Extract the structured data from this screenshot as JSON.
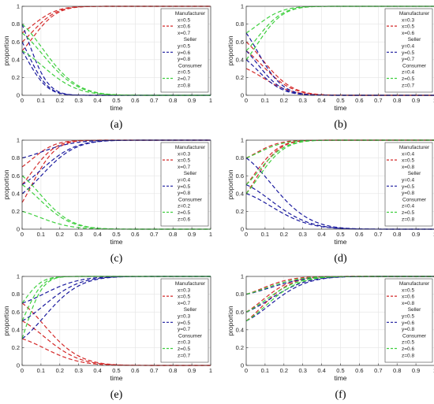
{
  "figure": {
    "colors": {
      "manufacturer": "#d42a2a",
      "seller": "#1a1a9e",
      "consumer": "#3ecf3e"
    }
  },
  "chart_data": [
    {
      "panel": "(a)",
      "type": "line",
      "xlabel": "time",
      "ylabel": "proportion",
      "xlim": [
        0,
        1
      ],
      "ylim": [
        0,
        1
      ],
      "xticks": [
        "0",
        "0.1",
        "0.2",
        "0.3",
        "0.4",
        "0.5",
        "0.6",
        "0.7",
        "0.8",
        "0.9",
        "1"
      ],
      "yticks": [
        "0",
        "0.2",
        "0.4",
        "0.6",
        "0.8",
        "1"
      ],
      "grid": true,
      "legend_position": "top-right",
      "legend": [
        {
          "group": "Manufacturer",
          "role": "manufacturer",
          "entries": [
            "x=0.5",
            "x=0.6",
            "x=0.7"
          ]
        },
        {
          "group": "Seller",
          "role": "seller",
          "entries": [
            "y=0.5",
            "y=0.6",
            "y=0.8"
          ]
        },
        {
          "group": "Consumer",
          "role": "consumer",
          "entries": [
            "z=0.5",
            "z=0.7",
            "z=0.8"
          ]
        }
      ],
      "series": [
        {
          "role": "manufacturer",
          "start": 0.5,
          "end": 1,
          "rate": 30
        },
        {
          "role": "manufacturer",
          "start": 0.6,
          "end": 1,
          "rate": 30
        },
        {
          "role": "manufacturer",
          "start": 0.7,
          "end": 1,
          "rate": 30
        },
        {
          "role": "seller",
          "start": 0.5,
          "end": 0,
          "rate": 45
        },
        {
          "role": "seller",
          "start": 0.6,
          "end": 0,
          "rate": 45
        },
        {
          "role": "seller",
          "start": 0.8,
          "end": 0,
          "rate": 45
        },
        {
          "role": "consumer",
          "start": 0.5,
          "end": 0,
          "rate": 15
        },
        {
          "role": "consumer",
          "start": 0.7,
          "end": 0,
          "rate": 15
        },
        {
          "role": "consumer",
          "start": 0.8,
          "end": 0,
          "rate": 15
        }
      ]
    },
    {
      "panel": "(b)",
      "type": "line",
      "xlabel": "time",
      "ylabel": "proportion",
      "xlim": [
        0,
        1
      ],
      "ylim": [
        0,
        1
      ],
      "xticks": [
        "0",
        "0.1",
        "0.2",
        "0.3",
        "0.4",
        "0.5",
        "0.6",
        "0.7",
        "0.8",
        "0.9",
        "1"
      ],
      "yticks": [
        "0",
        "0.2",
        "0.4",
        "0.6",
        "0.8",
        "1"
      ],
      "grid": true,
      "legend_position": "top-right",
      "legend": [
        {
          "group": "Manufacturer",
          "role": "manufacturer",
          "entries": [
            "x=0.3",
            "x=0.5",
            "x=0.6"
          ]
        },
        {
          "group": "Seller",
          "role": "seller",
          "entries": [
            "y=0.4",
            "y=0.5",
            "y=0.7"
          ]
        },
        {
          "group": "Consumer",
          "role": "consumer",
          "entries": [
            "z=0.4",
            "z=0.5",
            "z=0.7"
          ]
        }
      ],
      "series": [
        {
          "role": "manufacturer",
          "start": 0.3,
          "end": 0,
          "rate": 20
        },
        {
          "role": "manufacturer",
          "start": 0.5,
          "end": 0,
          "rate": 20
        },
        {
          "role": "manufacturer",
          "start": 0.6,
          "end": 0,
          "rate": 20
        },
        {
          "role": "seller",
          "start": 0.4,
          "end": 0,
          "rate": 28
        },
        {
          "role": "seller",
          "start": 0.5,
          "end": 0,
          "rate": 28
        },
        {
          "role": "seller",
          "start": 0.7,
          "end": 0,
          "rate": 28
        },
        {
          "role": "consumer",
          "start": 0.4,
          "end": 1,
          "rate": 28
        },
        {
          "role": "consumer",
          "start": 0.5,
          "end": 1,
          "rate": 28
        },
        {
          "role": "consumer",
          "start": 0.7,
          "end": 1,
          "rate": 28
        }
      ]
    },
    {
      "panel": "(c)",
      "type": "line",
      "xlabel": "time",
      "ylabel": "proportion",
      "xlim": [
        0,
        1
      ],
      "ylim": [
        0,
        1
      ],
      "xticks": [
        "0",
        "0.1",
        "0.2",
        "0.3",
        "0.4",
        "0.5",
        "0.6",
        "0.7",
        "0.8",
        "0.9",
        "1"
      ],
      "yticks": [
        "0",
        "0.2",
        "0.4",
        "0.6",
        "0.8",
        "1"
      ],
      "grid": true,
      "legend_position": "top-right",
      "legend": [
        {
          "group": "Manufacturer",
          "role": "manufacturer",
          "entries": [
            "x=0.3",
            "x=0.5",
            "x=0.7"
          ]
        },
        {
          "group": "Seller",
          "role": "seller",
          "entries": [
            "y=0.4",
            "y=0.5",
            "y=0.8"
          ]
        },
        {
          "group": "Consumer",
          "role": "consumer",
          "entries": [
            "z=0.2",
            "z=0.5",
            "z=0.6"
          ]
        }
      ],
      "series": [
        {
          "role": "manufacturer",
          "start": 0.3,
          "end": 1,
          "rate": 32
        },
        {
          "role": "manufacturer",
          "start": 0.5,
          "end": 1,
          "rate": 32
        },
        {
          "role": "manufacturer",
          "start": 0.7,
          "end": 1,
          "rate": 32
        },
        {
          "role": "seller",
          "start": 0.4,
          "end": 1,
          "rate": 16
        },
        {
          "role": "seller",
          "start": 0.5,
          "end": 1,
          "rate": 16
        },
        {
          "role": "seller",
          "start": 0.8,
          "end": 1,
          "rate": 16
        },
        {
          "role": "consumer",
          "start": 0.2,
          "end": 0,
          "rate": 18
        },
        {
          "role": "consumer",
          "start": 0.5,
          "end": 0,
          "rate": 18
        },
        {
          "role": "consumer",
          "start": 0.6,
          "end": 0,
          "rate": 18
        }
      ]
    },
    {
      "panel": "(d)",
      "type": "line",
      "xlabel": "time",
      "ylabel": "proportion",
      "xlim": [
        0,
        1
      ],
      "ylim": [
        0,
        1
      ],
      "xticks": [
        "0",
        "0.1",
        "0.2",
        "0.3",
        "0.4",
        "0.5",
        "0.6",
        "0.7",
        "0.8",
        "0.9",
        "1"
      ],
      "yticks": [
        "0",
        "0.2",
        "0.4",
        "0.6",
        "0.8",
        "1"
      ],
      "grid": true,
      "legend_position": "top-right",
      "legend": [
        {
          "group": "Manufacturer",
          "role": "manufacturer",
          "entries": [
            "x=0.4",
            "x=0.5",
            "x=0.8"
          ]
        },
        {
          "group": "Seller",
          "role": "seller",
          "entries": [
            "y=0.4",
            "y=0.5",
            "y=0.8"
          ]
        },
        {
          "group": "Consumer",
          "role": "consumer",
          "entries": [
            "z=0.4",
            "z=0.5",
            "z=0.8"
          ]
        }
      ],
      "series": [
        {
          "role": "manufacturer",
          "start": 0.4,
          "end": 1,
          "rate": 32
        },
        {
          "role": "manufacturer",
          "start": 0.5,
          "end": 1,
          "rate": 32
        },
        {
          "role": "manufacturer",
          "start": 0.8,
          "end": 1,
          "rate": 32
        },
        {
          "role": "seller",
          "start": 0.4,
          "end": 0,
          "rate": 12
        },
        {
          "role": "seller",
          "start": 0.5,
          "end": 0,
          "rate": 12
        },
        {
          "role": "seller",
          "start": 0.8,
          "end": 0,
          "rate": 12
        },
        {
          "role": "consumer",
          "start": 0.4,
          "end": 1,
          "rate": 26
        },
        {
          "role": "consumer",
          "start": 0.5,
          "end": 1,
          "rate": 26
        },
        {
          "role": "consumer",
          "start": 0.8,
          "end": 1,
          "rate": 26
        }
      ]
    },
    {
      "panel": "(e)",
      "type": "line",
      "xlabel": "time",
      "ylabel": "proportion",
      "xlim": [
        0,
        1
      ],
      "ylim": [
        0,
        1
      ],
      "xticks": [
        "0",
        "0.1",
        "0.2",
        "0.3",
        "0.4",
        "0.5",
        "0.6",
        "0.7",
        "0.8",
        "0.9",
        "1"
      ],
      "yticks": [
        "0",
        "0.2",
        "0.4",
        "0.6",
        "0.8",
        "1"
      ],
      "grid": true,
      "legend_position": "top-right",
      "legend": [
        {
          "group": "Manufacturer",
          "role": "manufacturer",
          "entries": [
            "x=0.3",
            "x=0.5",
            "x=0.7"
          ]
        },
        {
          "group": "Seller",
          "role": "seller",
          "entries": [
            "y=0.3",
            "y=0.5",
            "y=0.7"
          ]
        },
        {
          "group": "Consumer",
          "role": "consumer",
          "entries": [
            "z=0.3",
            "z=0.5",
            "z=0.7"
          ]
        }
      ],
      "series": [
        {
          "role": "manufacturer",
          "start": 0.3,
          "end": 0,
          "rate": 14
        },
        {
          "role": "manufacturer",
          "start": 0.5,
          "end": 0,
          "rate": 14
        },
        {
          "role": "manufacturer",
          "start": 0.7,
          "end": 0,
          "rate": 14
        },
        {
          "role": "seller",
          "start": 0.3,
          "end": 1,
          "rate": 14
        },
        {
          "role": "seller",
          "start": 0.5,
          "end": 1,
          "rate": 14
        },
        {
          "role": "seller",
          "start": 0.7,
          "end": 1,
          "rate": 14
        },
        {
          "role": "consumer",
          "start": 0.3,
          "end": 1,
          "rate": 60
        },
        {
          "role": "consumer",
          "start": 0.5,
          "end": 1,
          "rate": 60
        },
        {
          "role": "consumer",
          "start": 0.7,
          "end": 1,
          "rate": 60
        }
      ]
    },
    {
      "panel": "(f)",
      "type": "line",
      "xlabel": "time",
      "ylabel": "proportion",
      "xlim": [
        0,
        1
      ],
      "ylim": [
        0,
        1
      ],
      "xticks": [
        "0",
        "0.1",
        "0.2",
        "0.3",
        "0.4",
        "0.5",
        "0.6",
        "0.7",
        "0.8",
        "0.9",
        "1"
      ],
      "yticks": [
        "0",
        "0.2",
        "0.4",
        "0.6",
        "0.8",
        "1"
      ],
      "grid": true,
      "legend_position": "top-right",
      "legend": [
        {
          "group": "Manufacturer",
          "role": "manufacturer",
          "entries": [
            "x=0.5",
            "x=0.6",
            "x=0.8"
          ]
        },
        {
          "group": "Seller",
          "role": "seller",
          "entries": [
            "y=0.5",
            "y=0.6",
            "y=0.8"
          ]
        },
        {
          "group": "Consumer",
          "role": "consumer",
          "entries": [
            "z=0.5",
            "z=0.6",
            "z=0.8"
          ]
        }
      ],
      "series": [
        {
          "role": "manufacturer",
          "start": 0.5,
          "end": 1,
          "rate": 20
        },
        {
          "role": "manufacturer",
          "start": 0.6,
          "end": 1,
          "rate": 20
        },
        {
          "role": "manufacturer",
          "start": 0.8,
          "end": 1,
          "rate": 20
        },
        {
          "role": "seller",
          "start": 0.5,
          "end": 1,
          "rate": 13
        },
        {
          "role": "seller",
          "start": 0.6,
          "end": 1,
          "rate": 13
        },
        {
          "role": "seller",
          "start": 0.8,
          "end": 1,
          "rate": 13
        },
        {
          "role": "consumer",
          "start": 0.5,
          "end": 1,
          "rate": 16
        },
        {
          "role": "consumer",
          "start": 0.6,
          "end": 1,
          "rate": 16
        },
        {
          "role": "consumer",
          "start": 0.8,
          "end": 1,
          "rate": 16
        }
      ]
    }
  ]
}
